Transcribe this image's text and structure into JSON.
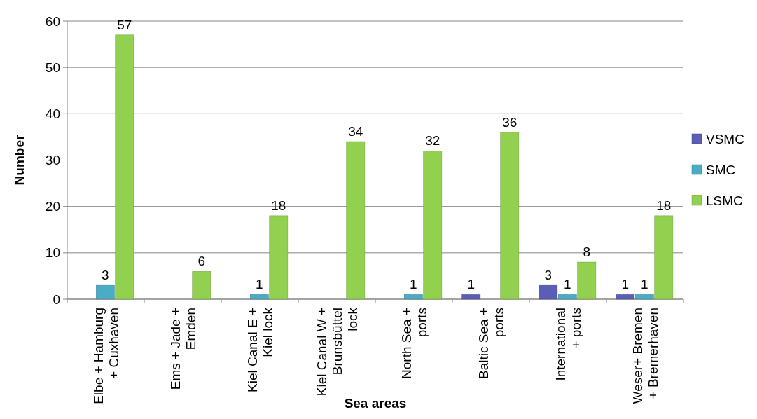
{
  "chart_data": {
    "type": "bar",
    "xlabel": "Sea areas",
    "ylabel": "Number",
    "categories": [
      "Elbe + Hamburg + Cuxhaven",
      "Ems + Jade + Emden",
      "Kiel Canal E + Kiel lock",
      "Kiel Canal W + Brunsbüttel lock",
      "North Sea + ports",
      "Baltic Sea + ports",
      "International + ports",
      "Weser+ Bremen + Bremerhaven"
    ],
    "series": [
      {
        "name": "VSMC",
        "color": "#5a5eb4",
        "values": [
          0,
          0,
          0,
          0,
          0,
          1,
          3,
          1
        ],
        "value_labels": [
          null,
          null,
          null,
          null,
          null,
          "1",
          "3",
          "1"
        ]
      },
      {
        "name": "SMC",
        "color": "#4bacc6",
        "values": [
          3,
          0,
          1,
          0,
          1,
          0,
          1,
          1
        ],
        "value_labels": [
          "3",
          null,
          "1",
          null,
          "1",
          null,
          "1",
          "1"
        ]
      },
      {
        "name": "LSMC",
        "color": "#92d050",
        "values": [
          57,
          6,
          18,
          34,
          32,
          36,
          8,
          18
        ],
        "value_labels": [
          "57",
          "6",
          "18",
          "34",
          "32",
          "36",
          "8",
          "18"
        ]
      }
    ],
    "ylim": [
      0,
      60
    ],
    "yticks": [
      0,
      10,
      20,
      30,
      40,
      50,
      60
    ],
    "grid": "y",
    "legend": "right"
  }
}
